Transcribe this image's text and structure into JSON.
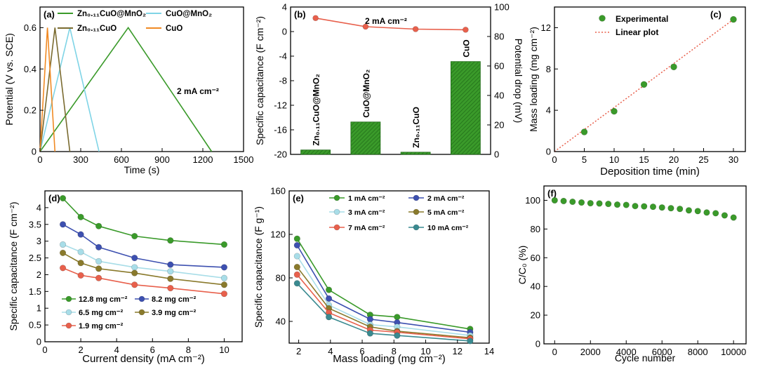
{
  "chart_data": [
    {
      "panel": "(a)",
      "type": "line",
      "xlabel": "Time (s)",
      "ylabel": "Potential (V vs. SCE)",
      "xlim": [
        0,
        1500
      ],
      "ylim": [
        0,
        0.7
      ],
      "xticks": [
        0,
        300,
        600,
        900,
        1200,
        1500
      ],
      "yticks": [
        0,
        0.2,
        0.4,
        0.6
      ],
      "annotation": "2 mA cm⁻²",
      "legend_position": "top",
      "series": [
        {
          "name": "Zn₀.₁₁CuO@MnO₂",
          "color": "#3a9a2a",
          "x": [
            0,
            650,
            1265
          ],
          "y": [
            0,
            0.6,
            0
          ]
        },
        {
          "name": "CuO@MnO₂",
          "color": "#7fd4e6",
          "x": [
            0,
            220,
            435
          ],
          "y": [
            0,
            0.6,
            0
          ]
        },
        {
          "name": "Zn₀.₁₁CuO",
          "color": "#7a6b30",
          "x": [
            0,
            110,
            220
          ],
          "y": [
            0,
            0.6,
            0
          ]
        },
        {
          "name": "CuO",
          "color": "#f08a24",
          "x": [
            0,
            55,
            110
          ],
          "y": [
            0,
            0.6,
            0
          ]
        }
      ]
    },
    {
      "panel": "(b)",
      "type": "bar",
      "ylabel_left": "Specific capacitance (F cm⁻²)",
      "ylabel_right": "Potential drop (mV)",
      "ylim_left": [
        -20,
        4
      ],
      "yticks_left": [
        -20,
        -16,
        -12,
        -8,
        -4,
        0,
        4
      ],
      "ylim_right": [
        0,
        100
      ],
      "yticks_right": [
        0,
        20,
        40,
        60,
        80,
        100
      ],
      "annotation": "2 mA cm⁻²",
      "categories": [
        "Zn₀.₁₁CuO@MnO₂",
        "CuO@MnO₂",
        "Zn₀.₁₁CuO",
        "CuO"
      ],
      "bar_values": [
        3,
        22,
        1.5,
        63
      ],
      "line_values": [
        2.2,
        0.8,
        0.4,
        0.3
      ],
      "bar_color": "#3a9a2a",
      "line_color": "#e8604c"
    },
    {
      "panel": "(c)",
      "type": "scatter",
      "xlabel": "Deposition time (min)",
      "ylabel": "Mass loading (mg cm⁻²)",
      "xlim": [
        0,
        32
      ],
      "ylim": [
        0,
        14
      ],
      "xticks": [
        0,
        5,
        10,
        15,
        20,
        25,
        30
      ],
      "yticks": [
        0,
        4,
        8,
        12
      ],
      "x": [
        5,
        10,
        15,
        20,
        30
      ],
      "y": [
        1.9,
        3.9,
        6.5,
        8.2,
        12.8
      ],
      "fit": {
        "x": [
          0,
          30
        ],
        "y": [
          0,
          12.8
        ]
      },
      "legend": [
        "Experimental",
        "Linear plot"
      ],
      "point_color": "#3a9a2a",
      "fit_color": "#e8604c"
    },
    {
      "panel": "(d)",
      "type": "line",
      "xlabel": "Current density (mA cm⁻²)",
      "ylabel": "Specific capacitance (F cm⁻²)",
      "xlim": [
        0,
        11
      ],
      "ylim": [
        0,
        4.5
      ],
      "xticks": [
        0,
        2,
        4,
        6,
        8,
        10
      ],
      "yticks": [
        0,
        0.5,
        1,
        1.5,
        2,
        2.5,
        3,
        3.5,
        4
      ],
      "x": [
        1,
        2,
        3,
        5,
        7,
        10
      ],
      "series": [
        {
          "name": "12.8 mg cm⁻²",
          "color": "#3a9a2a",
          "values": [
            4.28,
            3.72,
            3.45,
            3.15,
            3.02,
            2.9
          ]
        },
        {
          "name": "8.2 mg cm⁻²",
          "color": "#3d50b0",
          "values": [
            3.5,
            3.2,
            2.82,
            2.5,
            2.3,
            2.22
          ]
        },
        {
          "name": "6.5 mg cm⁻²",
          "color": "#a8dde8",
          "values": [
            2.9,
            2.68,
            2.4,
            2.22,
            2.1,
            1.9
          ]
        },
        {
          "name": "3.9 mg cm⁻²",
          "color": "#8a7a2c",
          "values": [
            2.65,
            2.35,
            2.18,
            2.05,
            1.88,
            1.7
          ]
        },
        {
          "name": "1.9 mg cm⁻²",
          "color": "#e8604c",
          "values": [
            2.2,
            1.98,
            1.9,
            1.7,
            1.6,
            1.43
          ]
        }
      ]
    },
    {
      "panel": "(e)",
      "type": "line",
      "xlabel": "Mass loading (mg cm⁻²)",
      "ylabel": "Specific capacitance (F g⁻¹)",
      "xlim": [
        1.4,
        14
      ],
      "ylim": [
        20,
        160
      ],
      "xticks": [
        2,
        4,
        6,
        8,
        10,
        12,
        14
      ],
      "yticks": [
        40,
        80,
        120,
        160
      ],
      "x": [
        1.9,
        3.9,
        6.5,
        8.2,
        12.8
      ],
      "series": [
        {
          "name": "1 mA cm⁻²",
          "color": "#3a9a2a",
          "values": [
            116,
            69,
            46,
            44,
            33
          ]
        },
        {
          "name": "2 mA cm⁻²",
          "color": "#3d50b0",
          "values": [
            110,
            61,
            42,
            39,
            30
          ]
        },
        {
          "name": "3 mA cm⁻²",
          "color": "#a8dde8",
          "values": [
            100,
            55,
            37,
            35,
            27
          ]
        },
        {
          "name": "5 mA cm⁻²",
          "color": "#8a7a2c",
          "values": [
            90,
            52,
            35,
            31,
            25
          ]
        },
        {
          "name": "7 mA cm⁻²",
          "color": "#e8604c",
          "values": [
            83,
            48,
            32,
            30,
            24
          ]
        },
        {
          "name": "10 mA cm⁻²",
          "color": "#3a8a90",
          "values": [
            75,
            44,
            29,
            27,
            22
          ]
        }
      ]
    },
    {
      "panel": "(f)",
      "type": "scatter",
      "xlabel": "Cycle number",
      "ylabel": "C/C₀ (%)",
      "xlim": [
        -600,
        10700
      ],
      "ylim": [
        0,
        110
      ],
      "xticks": [
        0,
        2000,
        4000,
        6000,
        8000,
        10000
      ],
      "yticks": [
        0,
        20,
        40,
        60,
        80,
        100
      ],
      "x": [
        0,
        500,
        1000,
        1500,
        2000,
        2500,
        3000,
        3500,
        4000,
        4500,
        5000,
        5500,
        6000,
        6500,
        7000,
        7500,
        8000,
        8500,
        9000,
        9500,
        10000
      ],
      "y": [
        100,
        99.5,
        99,
        98.5,
        98,
        97.8,
        97.5,
        97,
        96.8,
        96,
        95.8,
        95.5,
        95,
        94.5,
        94,
        93,
        92.5,
        91.5,
        91,
        89.5,
        88
      ],
      "color": "#3a9a2a"
    }
  ]
}
